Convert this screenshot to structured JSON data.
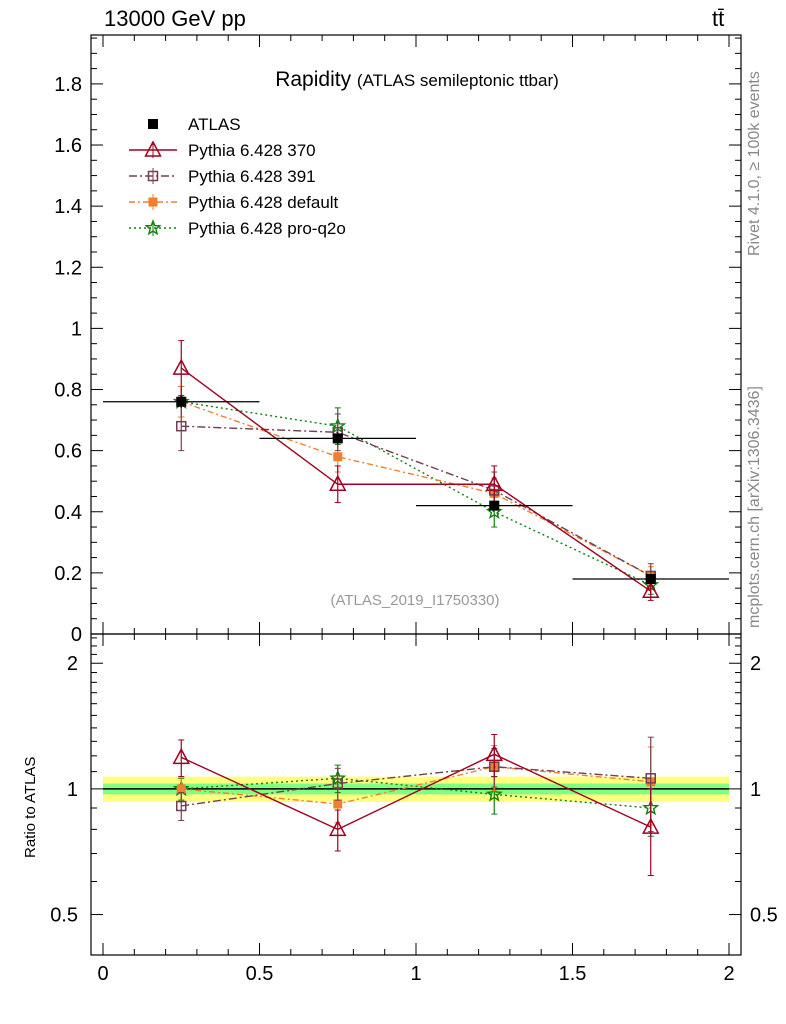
{
  "header": {
    "energy_label": "13000 GeV pp",
    "process_label": "tt̄"
  },
  "side_labels": {
    "rivet": "Rivet 4.1.0, ≥ 100k events",
    "mcplots": "mcplots.cern.ch [arXiv:1306.3436]"
  },
  "chart_data": {
    "type": "scatter",
    "title": "Rapidity",
    "subtitle": "(ATLAS semileptonic ttbar)",
    "analysis_id": "(ATLAS_2019_I1750330)",
    "xlabel": "",
    "ylabel": "",
    "xlim": [
      0,
      2
    ],
    "main_ylim": [
      0,
      1.96
    ],
    "ratio_ylim": [
      0.4,
      2.35
    ],
    "ratio_ylabel": "Ratio to ATLAS",
    "x_ticks": [
      0,
      0.5,
      1,
      1.5,
      2
    ],
    "x_tick_labels": [
      "0",
      "0.5",
      "1",
      "1.5",
      "2"
    ],
    "main_y_ticks": [
      0,
      0.2,
      0.4,
      0.6,
      0.8,
      1,
      1.2,
      1.4,
      1.6,
      1.8
    ],
    "main_y_tick_labels": [
      "0",
      "0.2",
      "0.4",
      "0.6",
      "0.8",
      "1",
      "1.2",
      "1.4",
      "1.6",
      "1.8"
    ],
    "ratio_y_ticks": [
      0.5,
      1,
      2
    ],
    "ratio_y_tick_labels": [
      "0.5",
      "1",
      "2"
    ],
    "x": [
      0.25,
      0.75,
      1.25,
      1.75
    ],
    "x_err": 0.25,
    "series": [
      {
        "name": "ATLAS",
        "style": "data",
        "color": "#000000",
        "values": [
          0.76,
          0.64,
          0.42,
          0.18
        ],
        "errors": [
          0.02,
          0.02,
          0.015,
          0.01
        ],
        "ratio": [
          1,
          1,
          1,
          1
        ],
        "ratio_errors": [
          0,
          0,
          0,
          0
        ]
      },
      {
        "name": "Pythia 6.428 370",
        "style": "triangle",
        "color": "#a00020",
        "values": [
          0.87,
          0.49,
          0.49,
          0.14
        ],
        "errors": [
          0.09,
          0.06,
          0.06,
          0.03
        ],
        "ratio": [
          1.19,
          0.8,
          1.21,
          0.81
        ],
        "ratio_errors": [
          0.12,
          0.09,
          0.14,
          0.19
        ]
      },
      {
        "name": "Pythia 6.428 391",
        "style": "square-open",
        "color": "#704050",
        "values": [
          0.68,
          0.66,
          0.47,
          0.19
        ],
        "errors": [
          0.08,
          0.06,
          0.06,
          0.04
        ],
        "ratio": [
          0.91,
          1.03,
          1.13,
          1.06
        ],
        "ratio_errors": [
          0.07,
          0.09,
          0.12,
          0.27
        ]
      },
      {
        "name": "Pythia 6.428 default",
        "style": "square-filled",
        "color": "#f08030",
        "values": [
          0.76,
          0.58,
          0.46,
          0.19
        ],
        "errors": [
          0.05,
          0.05,
          0.05,
          0.03
        ],
        "ratio": [
          1.0,
          0.92,
          1.13,
          1.04
        ],
        "ratio_errors": [
          0.07,
          0.09,
          0.14,
          0.22
        ]
      },
      {
        "name": "Pythia 6.428 pro-q2o",
        "style": "star",
        "color": "#108010",
        "values": [
          0.76,
          0.68,
          0.4,
          0.16
        ],
        "errors": [
          0.05,
          0.06,
          0.05,
          0.03
        ],
        "ratio": [
          1.0,
          1.06,
          0.97,
          0.9
        ],
        "ratio_errors": [
          0.06,
          0.08,
          0.1,
          0.13
        ]
      }
    ],
    "band": {
      "inner_halfwidth": 0.03,
      "outer_halfwidth": 0.07,
      "inner_color": "#80ff80",
      "outer_color": "#ffff80"
    }
  }
}
